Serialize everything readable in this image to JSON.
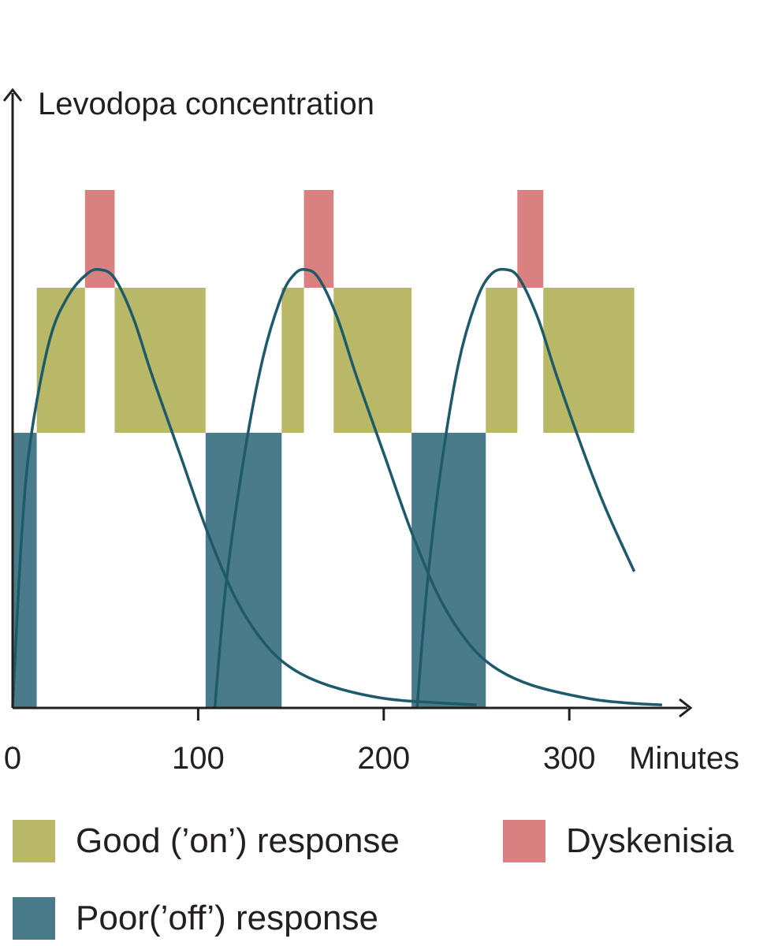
{
  "chart_data": {
    "type": "area",
    "ylabel": "Levodopa concentration",
    "xlabel": "Minutes",
    "xlim": [
      0,
      350
    ],
    "x_ticks": [
      0,
      100,
      200,
      300
    ],
    "x_tick_labels": [
      "0",
      "100",
      "200",
      "300"
    ],
    "colors": {
      "on": "#b8b866",
      "off": "#4a7b8a",
      "dyskinesia": "#d98080",
      "curve": "#1e5a6a",
      "axis": "#231f20"
    },
    "response_bands": [
      {
        "state": "off",
        "x_start": 0,
        "x_end": 13
      },
      {
        "state": "on",
        "x_start": 13,
        "x_end": 39
      },
      {
        "state": "dyskinesia",
        "x_start": 39,
        "x_end": 55
      },
      {
        "state": "on",
        "x_start": 55,
        "x_end": 104
      },
      {
        "state": "off",
        "x_start": 104,
        "x_end": 145
      },
      {
        "state": "on",
        "x_start": 145,
        "x_end": 157
      },
      {
        "state": "dyskinesia",
        "x_start": 157,
        "x_end": 173
      },
      {
        "state": "on",
        "x_start": 173,
        "x_end": 215
      },
      {
        "state": "off",
        "x_start": 215,
        "x_end": 255
      },
      {
        "state": "on",
        "x_start": 255,
        "x_end": 272
      },
      {
        "state": "dyskinesia",
        "x_start": 272,
        "x_end": 286
      },
      {
        "state": "on",
        "x_start": 286,
        "x_end": 335
      }
    ],
    "series": [
      {
        "dose_time": 0,
        "points": [
          [
            0,
            0
          ],
          [
            5,
            40
          ],
          [
            10,
            62
          ],
          [
            20,
            84
          ],
          [
            30,
            94
          ],
          [
            40,
            99
          ],
          [
            47,
            100
          ],
          [
            55,
            98
          ],
          [
            65,
            89
          ],
          [
            75,
            76
          ],
          [
            90,
            58
          ],
          [
            105,
            40
          ],
          [
            120,
            25
          ],
          [
            135,
            15
          ],
          [
            150,
            9
          ],
          [
            170,
            5
          ],
          [
            200,
            2
          ],
          [
            230,
            1
          ],
          [
            250,
            0.5
          ]
        ]
      },
      {
        "dose_time": 109,
        "points": [
          [
            109,
            0
          ],
          [
            115,
            28
          ],
          [
            125,
            58
          ],
          [
            135,
            80
          ],
          [
            145,
            94
          ],
          [
            152,
            99
          ],
          [
            158,
            100
          ],
          [
            165,
            98
          ],
          [
            175,
            89
          ],
          [
            185,
            76
          ],
          [
            200,
            58
          ],
          [
            215,
            40
          ],
          [
            230,
            25
          ],
          [
            245,
            15
          ],
          [
            260,
            9
          ],
          [
            280,
            5
          ],
          [
            310,
            2
          ],
          [
            330,
            1
          ],
          [
            350,
            0.5
          ]
        ]
      },
      {
        "dose_time": 218,
        "points": [
          [
            218,
            0
          ],
          [
            223,
            26
          ],
          [
            230,
            52
          ],
          [
            240,
            78
          ],
          [
            250,
            93
          ],
          [
            258,
            99
          ],
          [
            266,
            100
          ],
          [
            273,
            98
          ],
          [
            283,
            89
          ],
          [
            293,
            76
          ],
          [
            308,
            58
          ],
          [
            320,
            45
          ],
          [
            335,
            31
          ]
        ]
      }
    ]
  },
  "legend": {
    "items": [
      {
        "label": "Good (’on’) response",
        "color": "#b8b866"
      },
      {
        "label": "Dyskenisia",
        "color": "#d98080"
      },
      {
        "label": "Poor(’off’) response",
        "color": "#4a7b8a"
      }
    ]
  }
}
